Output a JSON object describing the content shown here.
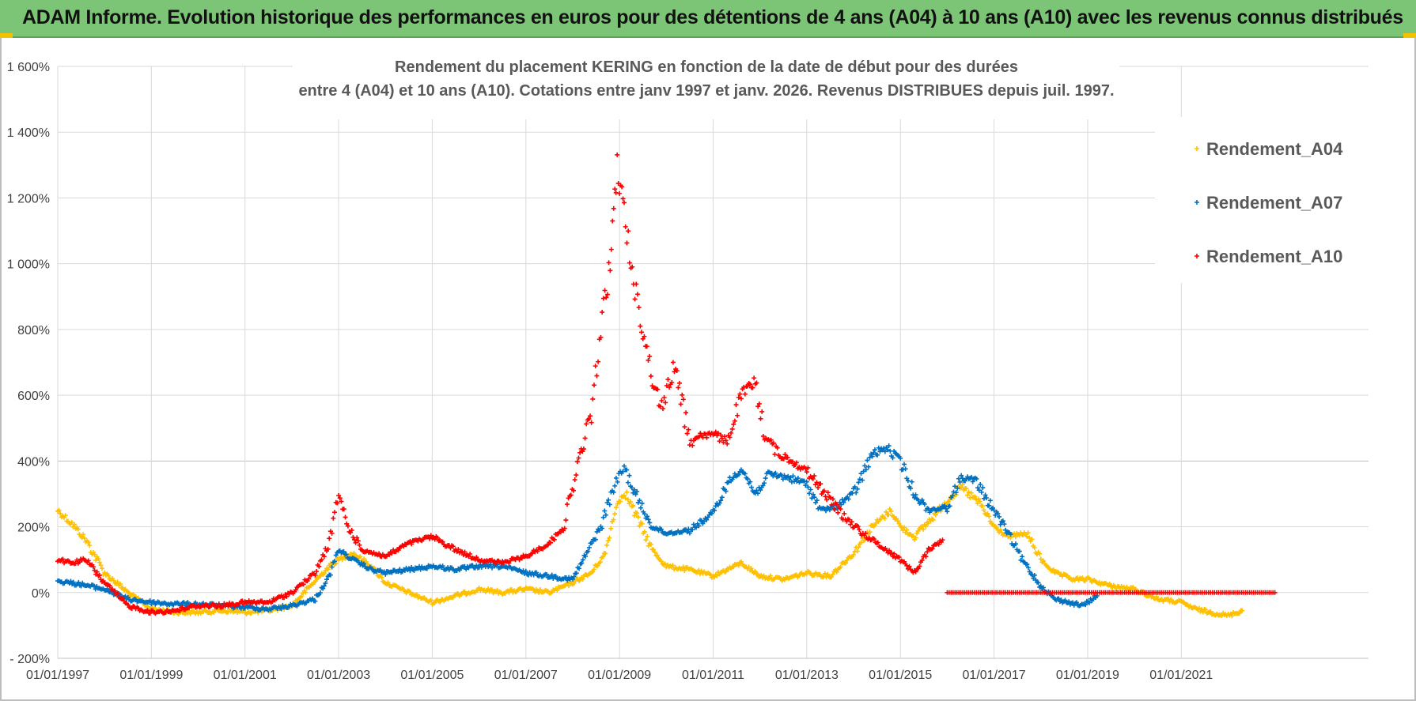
{
  "banner": {
    "title": "ADAM Informe. Evolution historique des performances en euros pour des détentions de 4 ans (A04) à 10 ans (A10) avec les revenus connus distribués"
  },
  "colors": {
    "banner_bg": "#7cc576",
    "A04": "#ffc000",
    "A07": "#0070c0",
    "A10": "#ff0000",
    "grid": "#d9d9d9"
  },
  "chart_data": {
    "type": "scatter",
    "title_line1": "Rendement du placement KERING en fonction de la date de début pour des durées",
    "title_line2": "entre 4 (A04) et 10 ans (A10).  Cotations entre janv 1997 et janv. 2026. Revenus DISTRIBUES depuis juil. 1997.",
    "xlabel": "",
    "ylabel": "",
    "x_range": [
      1997.0,
      2025.0
    ],
    "y_range": [
      -200,
      1600
    ],
    "y_ticks": [
      1600,
      1400,
      1200,
      1000,
      800,
      600,
      400,
      200,
      0,
      -200
    ],
    "y_tick_labels": [
      "1 600%",
      "1 400%",
      "1 200%",
      "1 000%",
      "800%",
      "600%",
      "400%",
      "200%",
      "0%",
      "- 200%"
    ],
    "x_ticks": [
      1997,
      1999,
      2001,
      2003,
      2005,
      2007,
      2009,
      2011,
      2013,
      2015,
      2017,
      2019,
      2021
    ],
    "x_tick_labels": [
      "01/01/1997",
      "01/01/1999",
      "01/01/2001",
      "01/01/2003",
      "01/01/2005",
      "01/01/2007",
      "01/01/2009",
      "01/01/2011",
      "01/01/2013",
      "01/01/2015",
      "01/01/2017",
      "01/01/2019",
      "01/01/2021"
    ],
    "grid": true,
    "legend_position": "top-right",
    "series": [
      {
        "name": "Rendement_A04",
        "x": [
          1997.0,
          1997.3,
          1997.6,
          1998.0,
          1998.5,
          1999.0,
          1999.5,
          2000.0,
          2000.5,
          2001.0,
          2001.5,
          2002.0,
          2002.4,
          2002.8,
          2003.0,
          2003.3,
          2003.7,
          2004.0,
          2004.5,
          2005.0,
          2005.5,
          2006.0,
          2006.5,
          2007.0,
          2007.5,
          2008.0,
          2008.4,
          2008.7,
          2008.9,
          2009.1,
          2009.4,
          2009.7,
          2010.0,
          2010.5,
          2011.0,
          2011.3,
          2011.6,
          2012.0,
          2012.5,
          2013.0,
          2013.5,
          2014.0,
          2014.4,
          2014.8,
          2015.0,
          2015.3,
          2015.7,
          2016.0,
          2016.3,
          2016.7,
          2017.0,
          2017.3,
          2017.7,
          2018.0,
          2018.3,
          2018.7,
          2019.0,
          2019.5,
          2020.0,
          2020.5,
          2021.0,
          2021.3,
          2021.6,
          2022.0,
          2022.3
        ],
        "values": [
          250,
          210,
          160,
          60,
          0,
          -50,
          -60,
          -60,
          -55,
          -60,
          -55,
          -40,
          20,
          80,
          100,
          120,
          80,
          30,
          0,
          -30,
          -10,
          10,
          0,
          10,
          0,
          30,
          60,
          120,
          250,
          310,
          220,
          130,
          80,
          70,
          50,
          70,
          90,
          50,
          40,
          60,
          50,
          120,
          200,
          250,
          200,
          170,
          230,
          280,
          320,
          270,
          200,
          170,
          180,
          100,
          60,
          40,
          40,
          20,
          10,
          -20,
          -30,
          -50,
          -60,
          -70,
          -55
        ],
        "color": "#ffc000"
      },
      {
        "name": "Rendement_A07",
        "x": [
          1997.0,
          1997.5,
          1998.0,
          1998.5,
          1999.0,
          1999.5,
          2000.0,
          2000.5,
          2001.0,
          2001.5,
          2002.0,
          2002.5,
          2002.8,
          2003.0,
          2003.3,
          2003.7,
          2004.0,
          2004.5,
          2005.0,
          2005.5,
          2006.0,
          2006.5,
          2007.0,
          2007.5,
          2008.0,
          2008.3,
          2008.6,
          2008.9,
          2009.1,
          2009.4,
          2009.7,
          2010.0,
          2010.5,
          2011.0,
          2011.3,
          2011.6,
          2011.9,
          2012.2,
          2012.6,
          2013.0,
          2013.3,
          2013.6,
          2014.0,
          2014.4,
          2014.7,
          2015.0,
          2015.3,
          2015.6,
          2016.0,
          2016.3,
          2016.6,
          2017.0,
          2017.3,
          2017.6,
          2018.0,
          2018.3,
          2018.6,
          2018.9,
          2019.2
        ],
        "values": [
          35,
          25,
          10,
          -20,
          -30,
          -35,
          -35,
          -40,
          -45,
          -50,
          -40,
          -20,
          50,
          130,
          100,
          70,
          60,
          70,
          80,
          70,
          80,
          80,
          60,
          50,
          40,
          120,
          200,
          330,
          380,
          280,
          200,
          180,
          190,
          240,
          330,
          380,
          300,
          360,
          350,
          330,
          250,
          260,
          300,
          420,
          440,
          400,
          300,
          250,
          260,
          350,
          340,
          250,
          180,
          100,
          20,
          -20,
          -30,
          -40,
          -10
        ],
        "color": "#0070c0"
      },
      {
        "name": "Rendement_A10",
        "x": [
          1997.0,
          1997.3,
          1997.6,
          1998.0,
          1998.5,
          1999.0,
          1999.5,
          2000.0,
          2000.5,
          2001.0,
          2001.5,
          2002.0,
          2002.5,
          2002.8,
          2003.0,
          2003.2,
          2003.5,
          2004.0,
          2004.5,
          2005.0,
          2005.5,
          2006.0,
          2006.5,
          2007.0,
          2007.5,
          2007.8,
          2008.1,
          2008.4,
          2008.6,
          2008.8,
          2008.95,
          2009.1,
          2009.3,
          2009.5,
          2009.7,
          2009.9,
          2010.2,
          2010.5,
          2010.7,
          2011.0,
          2011.3,
          2011.6,
          2011.9,
          2012.1,
          2012.4,
          2012.7,
          2013.0,
          2013.4,
          2013.8,
          2014.2,
          2014.6,
          2015.0,
          2015.3,
          2015.6,
          2015.9
        ],
        "values": [
          100,
          90,
          100,
          30,
          -40,
          -60,
          -55,
          -40,
          -40,
          -30,
          -30,
          0,
          60,
          150,
          300,
          200,
          130,
          110,
          150,
          170,
          130,
          100,
          90,
          110,
          150,
          200,
          380,
          550,
          800,
          1000,
          1300,
          1150,
          950,
          800,
          650,
          560,
          700,
          450,
          480,
          480,
          460,
          600,
          640,
          480,
          420,
          400,
          370,
          300,
          230,
          180,
          140,
          100,
          60,
          130,
          160
        ],
        "color": "#ff0000"
      },
      {
        "name": "Rendement_A10",
        "x": [
          2016.0,
          2017.0,
          2018.0,
          2019.0,
          2020.0,
          2021.0,
          2022.0,
          2023.0
        ],
        "values": [
          0,
          0,
          0,
          0,
          0,
          0,
          0,
          0
        ],
        "color": "#ff0000"
      }
    ]
  }
}
